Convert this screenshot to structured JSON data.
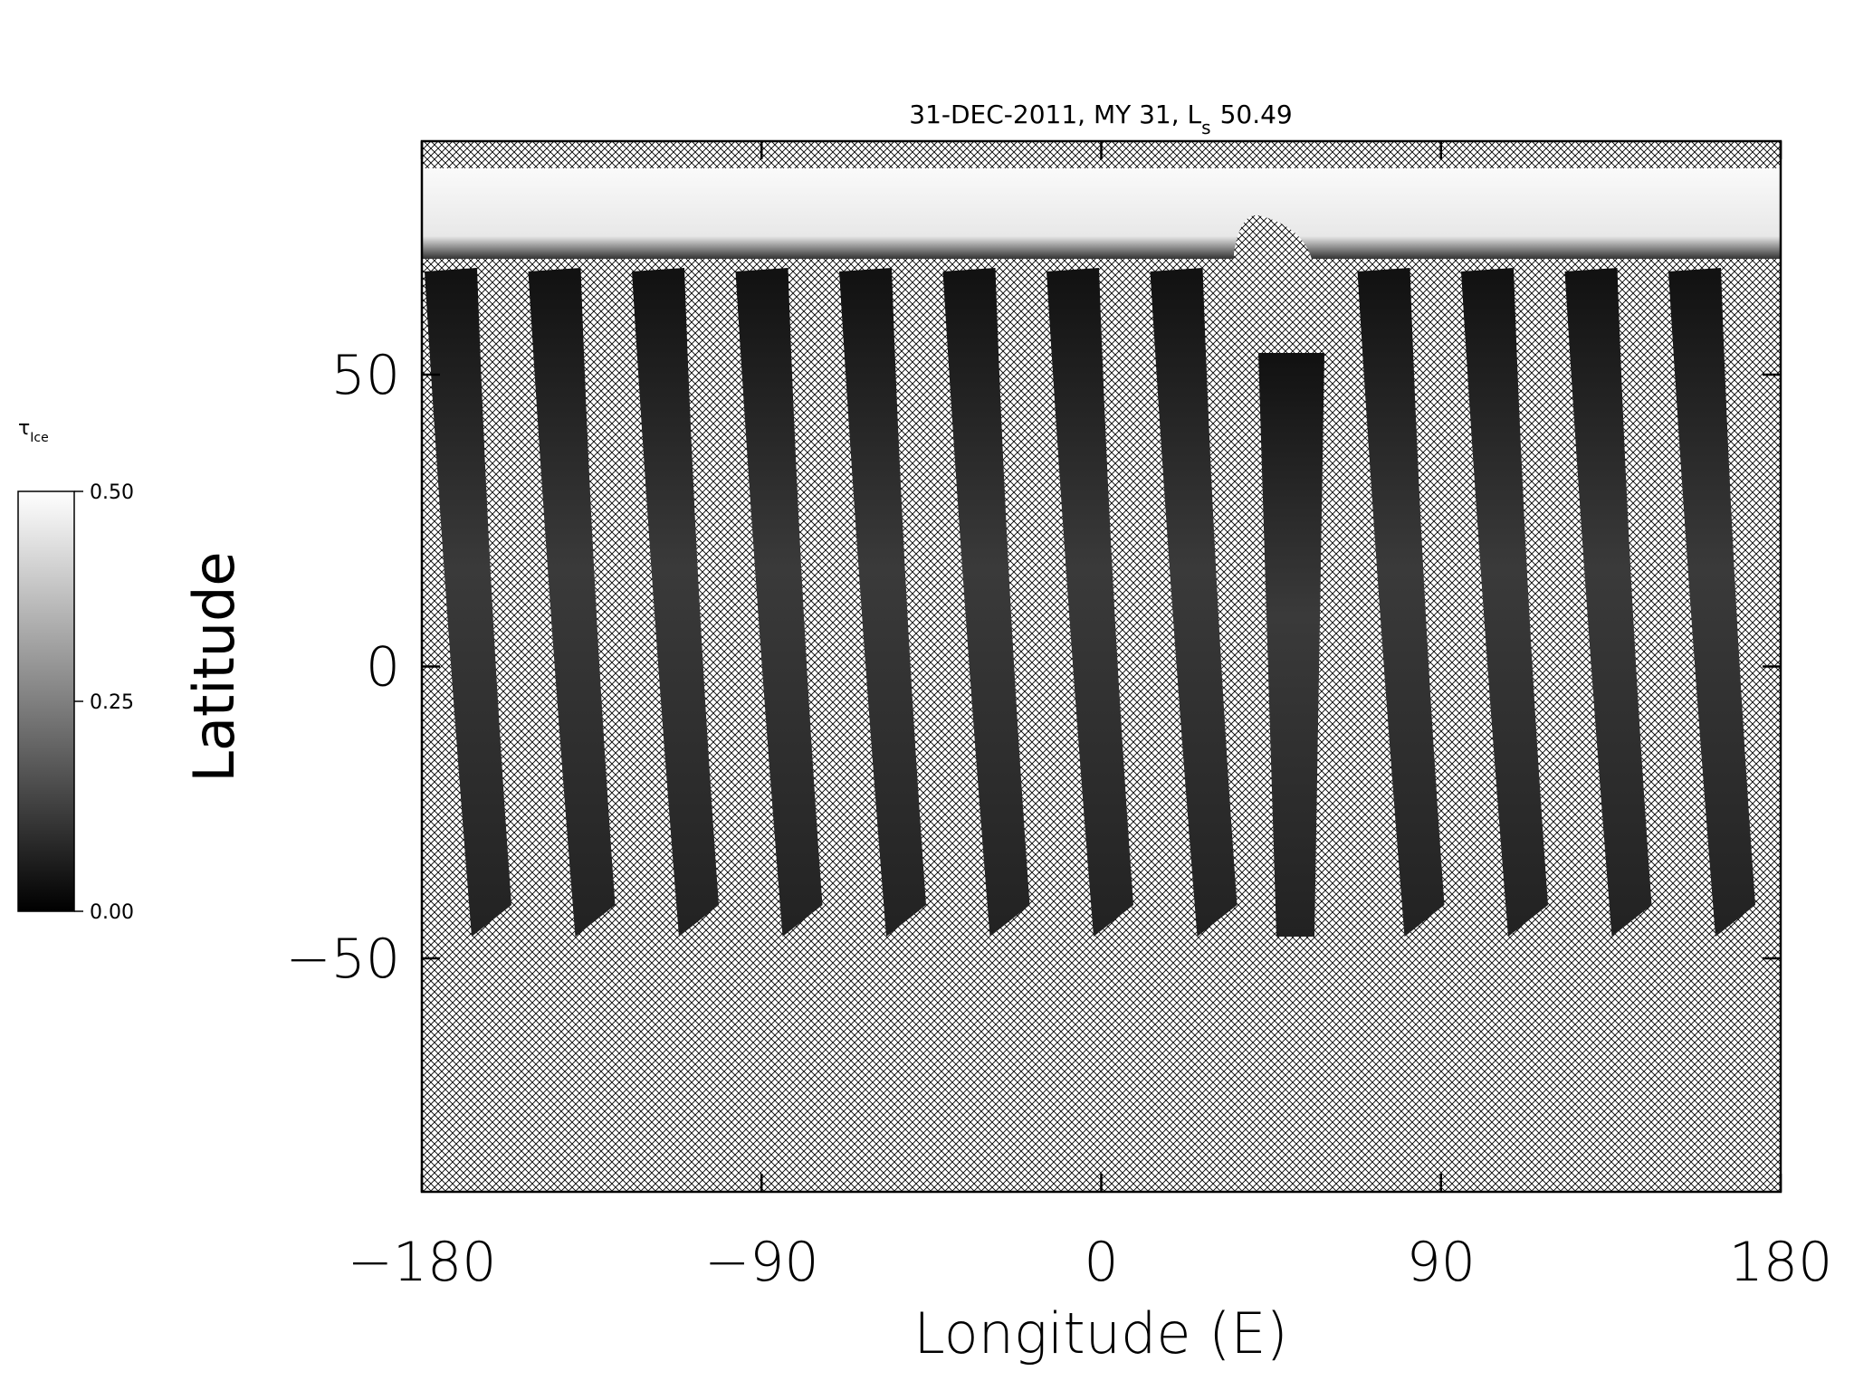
{
  "chart_data": {
    "type": "map",
    "title": {
      "text": "31-DEC-2011, MY 31,  L",
      "subscript": "s",
      "value": "50.49"
    },
    "xlabel": "Longitude (E)",
    "ylabel": "Latitude",
    "xlim": [
      -180,
      180
    ],
    "xticks": [
      {
        "value": -180,
        "label": "−180"
      },
      {
        "value": -90,
        "label": "−90"
      },
      0,
      90,
      180
    ],
    "ylim": [
      -90,
      90
    ],
    "yticks": [
      {
        "value": -50,
        "label": "−50"
      },
      0,
      50
    ],
    "colorbar": {
      "symbol": "τ",
      "subscript": "Ice",
      "colormap": "gray",
      "lim": [
        0,
        0.5
      ],
      "ticks": [
        {
          "value": 0,
          "label": "0.00"
        },
        {
          "value": 0.25,
          "label": "0.25"
        },
        {
          "value": 0.5,
          "label": "0.50"
        }
      ]
    }
  }
}
